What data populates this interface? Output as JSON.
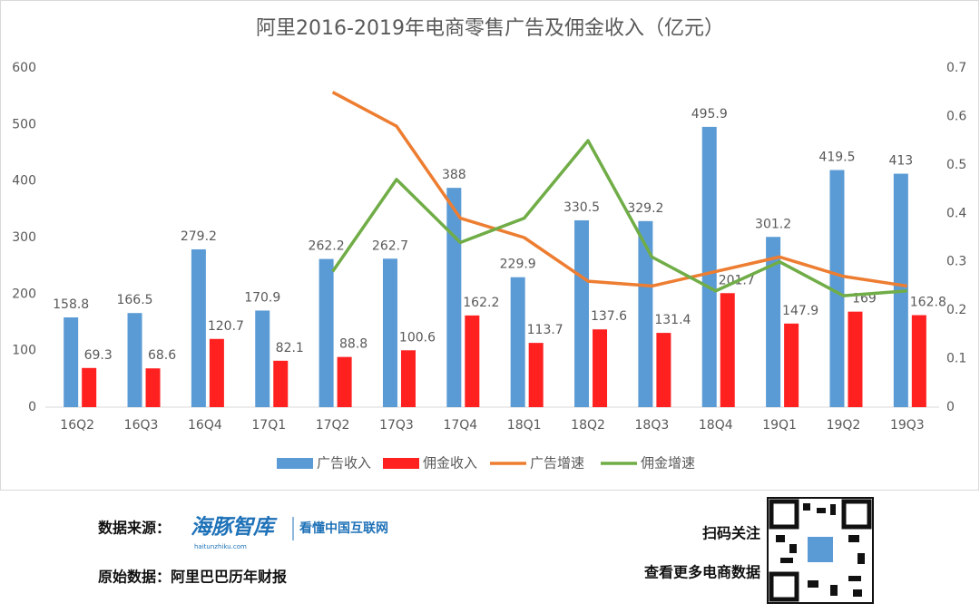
{
  "chart_data": {
    "type": "bar",
    "title": "阿里2016-2019年电商零售广告及佣金收入（亿元）",
    "categories": [
      "16Q2",
      "16Q3",
      "16Q4",
      "17Q1",
      "17Q2",
      "17Q3",
      "17Q4",
      "18Q1",
      "18Q2",
      "18Q3",
      "18Q4",
      "19Q1",
      "19Q2",
      "19Q3"
    ],
    "series": [
      {
        "name": "广告收入",
        "color": "#5b9bd5",
        "type": "bar",
        "values": [
          158.8,
          166.5,
          279.2,
          170.9,
          262.2,
          262.7,
          388,
          229.9,
          330.5,
          329.2,
          495.9,
          301.2,
          419.5,
          413
        ]
      },
      {
        "name": "佣金收入",
        "color": "#ff2020",
        "type": "bar",
        "values": [
          69.3,
          68.6,
          120.7,
          82.1,
          88.8,
          100.6,
          162.2,
          113.7,
          137.6,
          131.4,
          201.7,
          147.9,
          169,
          162.8
        ]
      },
      {
        "name": "广告增速",
        "color": "#ed7d31",
        "type": "line",
        "axis": "y2",
        "values": [
          null,
          null,
          null,
          null,
          0.65,
          0.58,
          0.39,
          0.35,
          0.26,
          0.25,
          0.28,
          0.31,
          0.27,
          0.25
        ]
      },
      {
        "name": "佣金增速",
        "color": "#70ad47",
        "type": "line",
        "axis": "y2",
        "values": [
          null,
          null,
          null,
          null,
          0.28,
          0.47,
          0.34,
          0.39,
          0.55,
          0.31,
          0.24,
          0.3,
          0.23,
          0.24
        ]
      }
    ],
    "ylim": [
      0,
      600
    ],
    "yticks": [
      0,
      100,
      200,
      300,
      400,
      500,
      600
    ],
    "y2lim": [
      0,
      0.7
    ],
    "y2ticks": [
      0,
      0.1,
      0.2,
      0.3,
      0.4,
      0.5,
      0.6,
      0.7
    ],
    "grid": false,
    "legend": "bottom"
  },
  "footer": {
    "source_label": "数据来源：",
    "logo": "海豚智库",
    "logo_slogan": "看懂中国互联网",
    "logo_url": "haitunzhiku.com",
    "origin": "原始数据：阿里巴巴历年财报",
    "scan": "扫码关注",
    "more": "查看更多电商数据"
  }
}
